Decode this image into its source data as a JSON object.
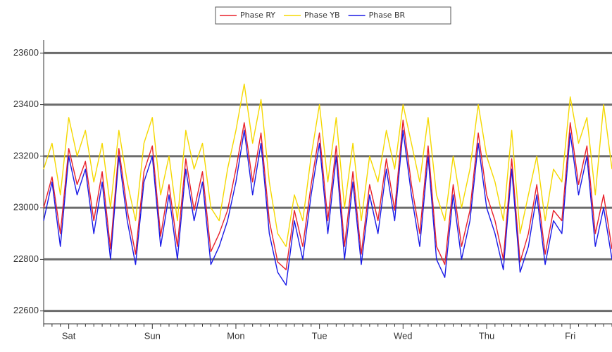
{
  "chart_data": {
    "type": "line",
    "categories": [
      null,
      null,
      null,
      "Sat",
      null,
      null,
      null,
      null,
      null,
      null,
      null,
      null,
      null,
      "Sun",
      null,
      null,
      null,
      null,
      null,
      null,
      null,
      null,
      null,
      "Mon",
      null,
      null,
      null,
      null,
      null,
      null,
      null,
      null,
      null,
      "Tue",
      null,
      null,
      null,
      null,
      null,
      null,
      null,
      null,
      null,
      "Wed",
      null,
      null,
      null,
      null,
      null,
      null,
      null,
      null,
      null,
      "Thu",
      null,
      null,
      null,
      null,
      null,
      null,
      null,
      null,
      null,
      "Fri",
      null,
      null,
      null,
      null,
      null
    ],
    "series": [
      {
        "name": "Phase RY",
        "color": "#e8202a",
        "values": [
          23000,
          23120,
          22900,
          23230,
          23090,
          23180,
          22950,
          23140,
          22840,
          23230,
          22990,
          22820,
          23140,
          23240,
          22890,
          23090,
          22850,
          23190,
          22990,
          23140,
          22830,
          22900,
          22990,
          23150,
          23330,
          23100,
          23290,
          22950,
          22790,
          22760,
          22990,
          22850,
          23090,
          23290,
          22950,
          23240,
          22850,
          23140,
          22820,
          23090,
          22950,
          23190,
          22990,
          23340,
          23090,
          22900,
          23240,
          22850,
          22780,
          23090,
          22850,
          22990,
          23290,
          23050,
          22950,
          22800,
          23190,
          22790,
          22900,
          23090,
          22820,
          22990,
          22950,
          23330,
          23090,
          23240,
          22900,
          23050,
          22840
        ]
      },
      {
        "name": "Phase YB",
        "color": "#f5d800",
        "values": [
          23150,
          23250,
          23050,
          23350,
          23200,
          23300,
          23100,
          23250,
          23000,
          23300,
          23100,
          22950,
          23250,
          23350,
          23050,
          23200,
          22950,
          23300,
          23150,
          23250,
          23000,
          22950,
          23150,
          23300,
          23480,
          23250,
          23420,
          23100,
          22900,
          22850,
          23050,
          22950,
          23200,
          23400,
          23100,
          23350,
          23000,
          23250,
          22950,
          23200,
          23100,
          23300,
          23150,
          23400,
          23250,
          23100,
          23350,
          23050,
          22950,
          23200,
          23000,
          23150,
          23400,
          23200,
          23100,
          22950,
          23300,
          22900,
          23050,
          23200,
          22950,
          23150,
          23100,
          23430,
          23250,
          23350,
          23050,
          23400,
          23150
        ]
      },
      {
        "name": "Phase BR",
        "color": "#1a1ae6",
        "values": [
          22950,
          23100,
          22850,
          23200,
          23050,
          23150,
          22900,
          23100,
          22800,
          23200,
          22950,
          22780,
          23100,
          23200,
          22850,
          23050,
          22800,
          23150,
          22950,
          23100,
          22780,
          22850,
          22950,
          23100,
          23300,
          23050,
          23250,
          22900,
          22750,
          22700,
          22950,
          22800,
          23050,
          23250,
          22900,
          23200,
          22800,
          23100,
          22780,
          23050,
          22900,
          23150,
          22950,
          23300,
          23050,
          22850,
          23200,
          22800,
          22730,
          23050,
          22800,
          22950,
          23250,
          23000,
          22900,
          22760,
          23150,
          22750,
          22850,
          23050,
          22780,
          22950,
          22900,
          23290,
          23050,
          23200,
          22850,
          23000,
          22800
        ]
      }
    ],
    "ylim": [
      22550,
      23650
    ],
    "yticks": [
      22600,
      22800,
      23000,
      23200,
      23400,
      23600
    ],
    "grid": true
  }
}
